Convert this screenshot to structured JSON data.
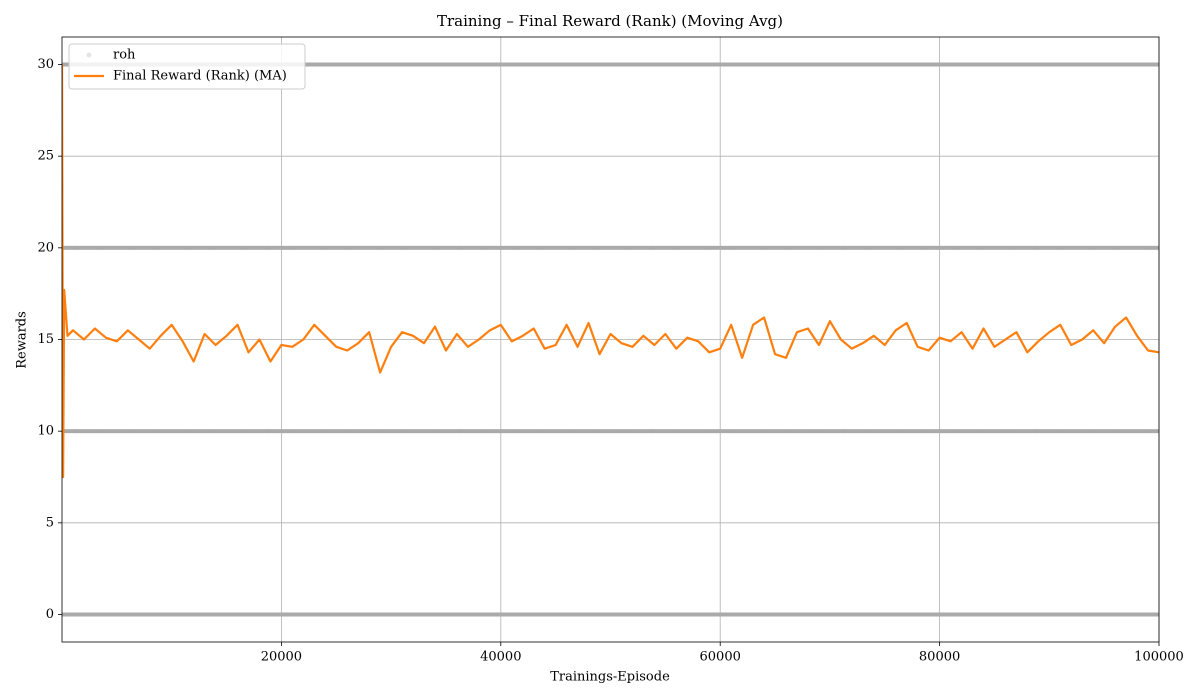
{
  "chart_data": {
    "type": "line",
    "title": "Training – Final Reward (Rank) (Moving Avg)",
    "xlabel": "Trainings-Episode",
    "ylabel": "Rewards",
    "xlim": [
      0,
      100000
    ],
    "ylim": [
      -1.5,
      31.5
    ],
    "xticks": [
      20000,
      40000,
      60000,
      80000,
      100000
    ],
    "yticks": [
      0,
      5,
      10,
      15,
      20,
      25,
      30
    ],
    "grid": true,
    "legend": "upper left",
    "series": [
      {
        "name": "roh",
        "color": "#aaaaaa",
        "kind": "scatter",
        "x": [
          0,
          2500,
          5000,
          7500,
          10000,
          12500,
          15000,
          17500,
          20000,
          22500,
          25000,
          27500,
          30000,
          32500,
          35000,
          37500,
          40000,
          42500,
          45000,
          47500,
          50000,
          52500,
          55000,
          57500,
          60000,
          62500,
          65000,
          67500,
          70000,
          72500,
          75000,
          77500,
          80000,
          82500,
          85000,
          87500,
          90000,
          92500,
          95000,
          97500,
          100000,
          0,
          2500,
          5000,
          7500,
          10000,
          12500,
          15000,
          17500,
          20000,
          22500,
          25000,
          27500,
          30000,
          32500,
          35000,
          37500,
          40000,
          42500,
          45000,
          47500,
          50000,
          52500,
          55000,
          57500,
          60000,
          62500,
          65000,
          67500,
          70000,
          72500,
          75000,
          77500,
          80000,
          82500,
          85000,
          87500,
          90000,
          92500,
          95000,
          97500,
          100000,
          0,
          2500,
          5000,
          7500,
          10000,
          12500,
          15000,
          17500,
          20000,
          22500,
          25000,
          27500,
          30000,
          32500,
          35000,
          37500,
          40000,
          42500,
          45000,
          47500,
          50000,
          52500,
          55000,
          57500,
          60000,
          62500,
          65000,
          67500,
          70000,
          72500,
          75000,
          77500,
          80000,
          82500,
          85000,
          87500,
          90000,
          92500,
          95000,
          97500,
          100000,
          0,
          2500,
          5000,
          7500,
          10000,
          12500,
          15000,
          17500,
          20000,
          22500,
          25000,
          27500,
          30000,
          32500,
          35000,
          37500,
          40000,
          42500,
          45000,
          47500,
          50000,
          52500,
          55000,
          57500,
          60000,
          62500,
          65000,
          67500,
          70000,
          72500,
          75000,
          77500,
          80000,
          82500,
          85000,
          87500,
          90000,
          92500,
          95000,
          97500,
          100000
        ],
        "values": [
          0,
          0,
          0,
          0,
          0,
          0,
          0,
          0,
          0,
          0,
          0,
          0,
          0,
          0,
          0,
          0,
          0,
          0,
          0,
          0,
          0,
          0,
          0,
          0,
          0,
          0,
          0,
          0,
          0,
          0,
          0,
          0,
          0,
          0,
          0,
          0,
          0,
          0,
          0,
          0,
          0,
          10,
          10,
          10,
          10,
          10,
          10,
          10,
          10,
          10,
          10,
          10,
          10,
          10,
          10,
          10,
          10,
          10,
          10,
          10,
          10,
          10,
          10,
          10,
          10,
          10,
          10,
          10,
          10,
          10,
          10,
          10,
          10,
          10,
          10,
          10,
          10,
          10,
          10,
          10,
          10,
          10,
          20,
          20,
          20,
          20,
          20,
          20,
          20,
          20,
          20,
          20,
          20,
          20,
          20,
          20,
          20,
          20,
          20,
          20,
          20,
          20,
          20,
          20,
          20,
          20,
          20,
          20,
          20,
          20,
          20,
          20,
          20,
          20,
          20,
          20,
          20,
          20,
          20,
          20,
          20,
          20,
          20,
          30,
          30,
          30,
          30,
          30,
          30,
          30,
          30,
          30,
          30,
          30,
          30,
          30,
          30,
          30,
          30,
          30,
          30,
          30,
          30,
          30,
          30,
          30,
          30,
          30,
          30,
          30,
          30,
          30,
          30,
          30,
          30,
          30,
          30,
          30,
          30,
          30,
          30,
          30,
          30,
          30
        ]
      },
      {
        "name": "Final Reward (Rank) (MA)",
        "color": "#ff7f0e",
        "kind": "line",
        "x": [
          0,
          100,
          200,
          500,
          1000,
          2000,
          3000,
          4000,
          5000,
          6000,
          7000,
          8000,
          9000,
          10000,
          11000,
          12000,
          13000,
          14000,
          15000,
          16000,
          17000,
          18000,
          19000,
          20000,
          21000,
          22000,
          23000,
          24000,
          25000,
          26000,
          27000,
          28000,
          29000,
          30000,
          31000,
          32000,
          33000,
          34000,
          35000,
          36000,
          37000,
          38000,
          39000,
          40000,
          41000,
          42000,
          43000,
          44000,
          45000,
          46000,
          47000,
          48000,
          49000,
          50000,
          51000,
          52000,
          53000,
          54000,
          55000,
          56000,
          57000,
          58000,
          59000,
          60000,
          61000,
          62000,
          63000,
          64000,
          65000,
          66000,
          67000,
          68000,
          69000,
          70000,
          71000,
          72000,
          73000,
          74000,
          75000,
          76000,
          77000,
          78000,
          79000,
          80000,
          81000,
          82000,
          83000,
          84000,
          85000,
          86000,
          87000,
          88000,
          89000,
          90000,
          91000,
          92000,
          93000,
          94000,
          95000,
          96000,
          97000,
          98000,
          99000,
          100000
        ],
        "values": [
          30,
          7.5,
          17.7,
          15.2,
          15.5,
          15.0,
          15.6,
          15.1,
          14.9,
          15.5,
          15.0,
          14.5,
          15.2,
          15.8,
          14.9,
          13.8,
          15.3,
          14.7,
          15.2,
          15.8,
          14.3,
          15.0,
          13.8,
          14.7,
          14.6,
          15.0,
          15.8,
          15.2,
          14.6,
          14.4,
          14.8,
          15.4,
          13.2,
          14.6,
          15.4,
          15.2,
          14.8,
          15.7,
          14.4,
          15.3,
          14.6,
          15.0,
          15.5,
          15.8,
          14.9,
          15.2,
          15.6,
          14.5,
          14.7,
          15.8,
          14.6,
          15.9,
          14.2,
          15.3,
          14.8,
          14.6,
          15.2,
          14.7,
          15.3,
          14.5,
          15.1,
          14.9,
          14.3,
          14.5,
          15.8,
          14.0,
          15.8,
          16.2,
          14.2,
          14.0,
          15.4,
          15.6,
          14.7,
          16.0,
          15.0,
          14.5,
          14.8,
          15.2,
          14.7,
          15.5,
          15.9,
          14.6,
          14.4,
          15.1,
          14.9,
          15.4,
          14.5,
          15.6,
          14.6,
          15.0,
          15.4,
          14.3,
          14.9,
          15.4,
          15.8,
          14.7,
          15.0,
          15.5,
          14.8,
          15.7,
          16.2,
          15.2,
          14.4,
          14.3
        ]
      }
    ]
  }
}
